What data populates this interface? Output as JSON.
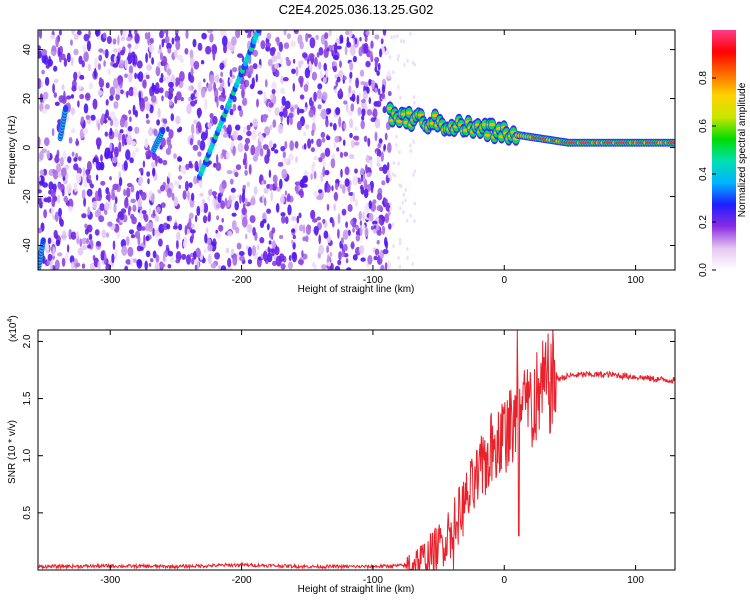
{
  "title": "C2E4.2025.036.13.25.G02",
  "colors": {
    "snr_line": "#e8212a",
    "axis": "#000000",
    "background": "#ffffff"
  },
  "chart_data": [
    {
      "type": "heatmap",
      "xlabel": "Height of straight line (km)",
      "ylabel": "Frequency (Hz)",
      "xlim": [
        -355,
        130
      ],
      "ylim": [
        -50,
        48
      ],
      "x_ticks": [
        -300,
        -200,
        -100,
        0,
        100
      ],
      "y_ticks": [
        -40,
        -20,
        0,
        20,
        40
      ],
      "colorbar": {
        "label": "Normalized spectral amplitude",
        "range": [
          0.0,
          1.0
        ],
        "ticks": [
          "0.0",
          "0.2",
          "0.4",
          "0.6",
          "0.8"
        ],
        "colors": [
          "#ffffff",
          "#e6c6f2",
          "#8a2be2",
          "#1e1eff",
          "#00b4ff",
          "#00e0b0",
          "#00dc00",
          "#c8e600",
          "#ffd200",
          "#ff6a00",
          "#ff0000",
          "#ff3c8c"
        ]
      },
      "noise_region": {
        "x": [
          -355,
          -87
        ],
        "freq": [
          -50,
          48
        ],
        "amplitude": 0.3
      },
      "features": [
        {
          "name": "diagonal streak",
          "x": [
            -232,
            -187
          ],
          "freq": [
            -12,
            48
          ],
          "amplitude": 0.4
        },
        {
          "name": "left streak",
          "x": [
            -338,
            -334
          ],
          "freq": [
            4,
            16
          ],
          "amplitude": 0.3
        },
        {
          "name": "left bottom streak",
          "x": [
            -355,
            -351
          ],
          "freq": [
            -50,
            -38
          ],
          "amplitude": 0.3
        },
        {
          "name": "small blob",
          "x": [
            -267,
            -260
          ],
          "freq": [
            -1,
            7
          ],
          "amplitude": 0.4
        },
        {
          "name": "carrier",
          "x": [
            -87,
            130
          ],
          "freq_start": 13,
          "freq_end": 2,
          "amplitude": 0.9
        }
      ]
    },
    {
      "type": "line",
      "xlabel": "Height of straight line (km)",
      "ylabel": "SNR (10 * v/v)",
      "y_multiplier": "(x10",
      "y_multiplier_exp": "4",
      "xlim": [
        -355,
        130
      ],
      "ylim": [
        0,
        21000
      ],
      "x_ticks": [
        -300,
        -200,
        -100,
        0,
        100
      ],
      "y_ticks": [
        5000,
        10000,
        15000,
        20000
      ],
      "y_tick_labels": [
        "0.5",
        "1.0",
        "1.5",
        "2.0"
      ],
      "series": [
        {
          "x": [
            -355,
            -300,
            -250,
            -200,
            -150,
            -100,
            -75,
            -60,
            -50,
            -40,
            -30,
            -20,
            -10,
            0,
            10,
            20,
            30,
            40,
            50,
            60,
            80,
            100,
            115,
            130
          ],
          "values": [
            300,
            350,
            300,
            450,
            300,
            300,
            400,
            900,
            2000,
            3500,
            5800,
            8000,
            10500,
            12000,
            13000,
            14500,
            15800,
            16700,
            17000,
            17100,
            17100,
            16900,
            16700,
            16600
          ]
        }
      ]
    }
  ]
}
